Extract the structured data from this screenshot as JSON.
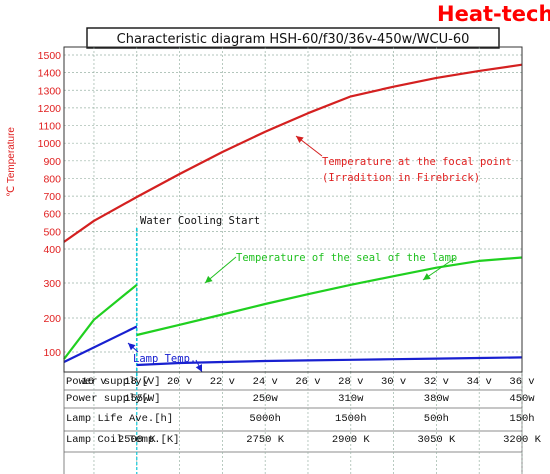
{
  "brand": "Heat-tech",
  "chart_data": {
    "type": "line",
    "title": "Characteristic diagram  HSH-60/f30/36v-450w/WCU-60",
    "ylabel": "℃  Temperature",
    "yticks": [
      100,
      200,
      300,
      400,
      500,
      600,
      700,
      800,
      900,
      1000,
      1100,
      1200,
      1300,
      1400,
      1500
    ],
    "x_header": "Power supply[V]",
    "x_ticks": [
      "16 v",
      "18 v",
      "20 v",
      "22 v",
      "24 v",
      "26 v",
      "28 v",
      "30 v",
      "32 v",
      "34 v",
      "36 v"
    ],
    "x_range": [
      14.6,
      36
    ],
    "grid": true,
    "series": [
      {
        "name": "Temperature at the focal point (Irradition in Firebrick)",
        "color": "#d42020",
        "x": [
          14.6,
          16,
          18,
          20,
          22,
          24,
          26,
          28,
          30,
          32,
          34,
          36
        ],
        "y": [
          440,
          560,
          695,
          825,
          950,
          1065,
          1170,
          1265,
          1320,
          1370,
          1410,
          1445
        ]
      },
      {
        "name": "Temperature of the seal of the lamp",
        "color": "#20d020",
        "x": [
          14.6,
          16,
          18
        ],
        "y": [
          65,
          195,
          295
        ],
        "x2": [
          18,
          20,
          22,
          24,
          26,
          28,
          30,
          32,
          34,
          36
        ],
        "y2": [
          150,
          180,
          210,
          240,
          268,
          295,
          320,
          345,
          365,
          375
        ]
      },
      {
        "name": "Lamp Temp.",
        "color": "#1820d0",
        "x": [
          14.6,
          18
        ],
        "y": [
          50,
          175
        ],
        "x2": [
          18,
          20,
          22,
          24,
          26,
          28,
          30,
          32,
          34,
          36
        ],
        "y2": [
          35,
          45,
          50,
          55,
          58,
          61,
          64,
          67,
          70,
          73
        ]
      }
    ],
    "annotations": {
      "focal_1": "Temperature at the focal point",
      "focal_2": "(Irradition in Firebrick)",
      "seal": "Temperature of the seal of the lamp",
      "lamp": "Lamp Temp.",
      "water": "Water Cooling Start"
    },
    "table": {
      "rows": [
        {
          "header": "Power supply[W]",
          "values": [
            "155w",
            "250w",
            "310w",
            "380w",
            "450w"
          ],
          "at_x": [
            18,
            24,
            28,
            32,
            36
          ]
        },
        {
          "header": "Lamp Life Ave.[h]",
          "values": [
            "5000h",
            "1500h",
            "500h",
            "150h"
          ],
          "at_x": [
            24,
            28,
            32,
            36
          ]
        },
        {
          "header": "Lamp Coil Temp.[K]",
          "values": [
            "2500 K",
            "2750 K",
            "2900 K",
            "3050 K",
            "3200 K"
          ],
          "at_x": [
            18,
            24,
            28,
            32,
            36
          ]
        }
      ]
    }
  }
}
